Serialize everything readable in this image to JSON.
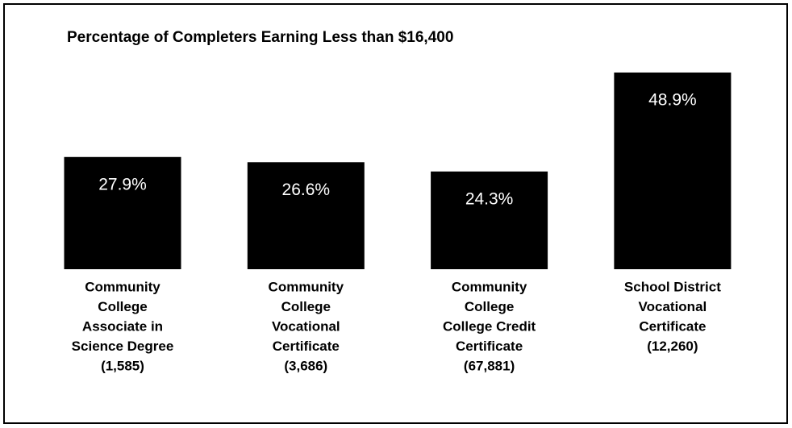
{
  "chart_data": {
    "type": "bar",
    "title": "Percentage of Completers Earning Less than $16,400",
    "categories": [
      [
        "Community",
        "College",
        "Associate in",
        "Science Degree",
        "(1,585)"
      ],
      [
        "Community",
        "College",
        "Vocational",
        "Certificate",
        "(3,686)"
      ],
      [
        "Community",
        "College",
        "College Credit",
        "Certificate",
        "(67,881)"
      ],
      [
        "School District",
        "Vocational",
        "Certificate",
        "(12,260)"
      ]
    ],
    "values": [
      27.9,
      26.6,
      24.3,
      48.9
    ],
    "value_labels": [
      "27.9%",
      "26.6%",
      "24.3%",
      "48.9%"
    ],
    "color": "#000000"
  }
}
